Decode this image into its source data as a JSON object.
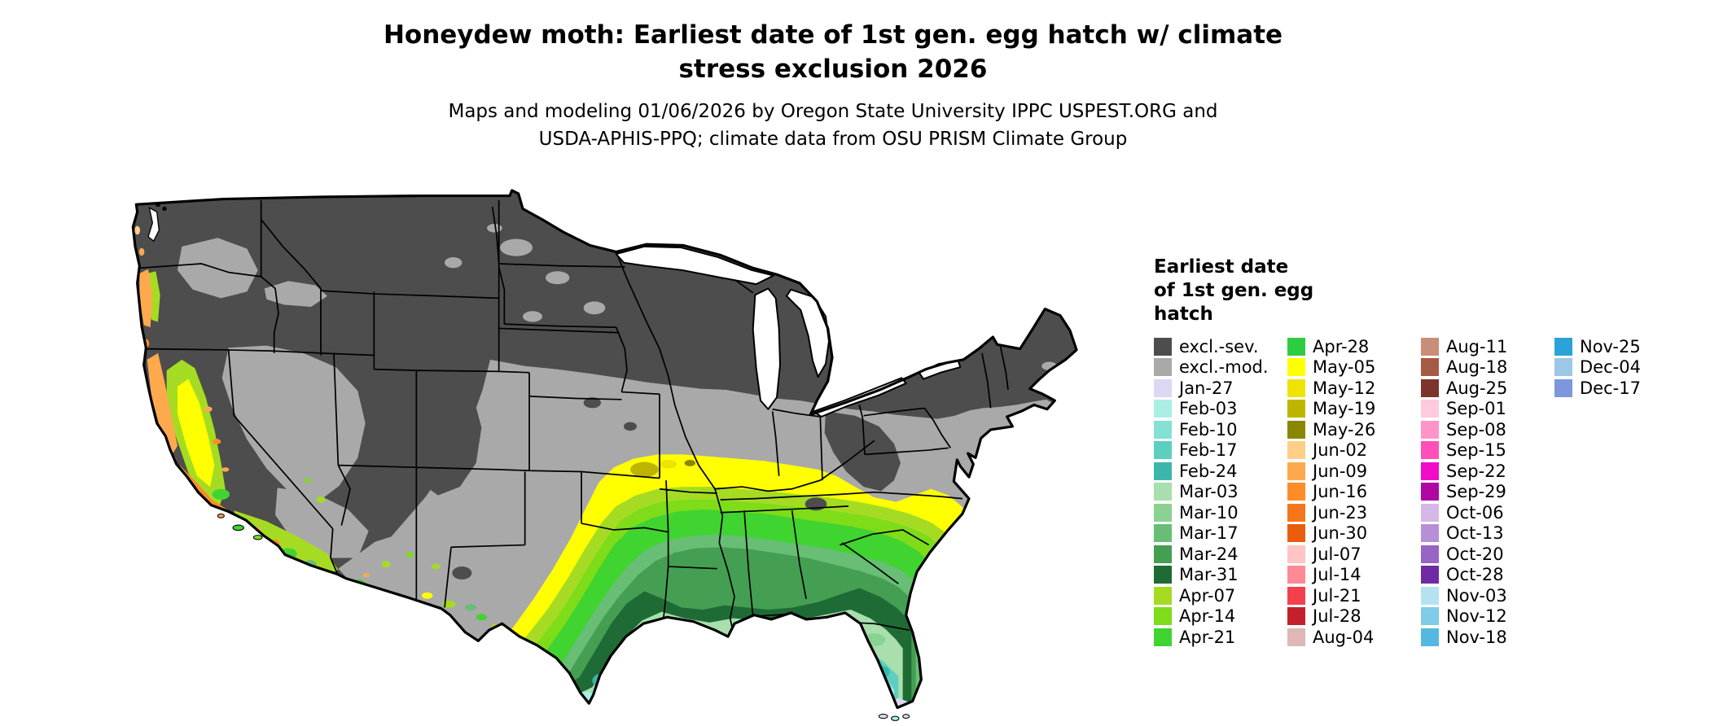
{
  "title": {
    "line1": "Honeydew moth: Earliest date of 1st gen. egg hatch w/ climate",
    "line2": "stress exclusion 2026"
  },
  "subtitle": {
    "line1": "Maps and modeling 01/06/2026 by Oregon State University IPPC USPEST.ORG and",
    "line2": "USDA-APHIS-PPQ; climate data from OSU PRISM Climate Group"
  },
  "map": {
    "kind": "choropleth of continental United States",
    "excluded_color_severe": "#4D4D4D",
    "excluded_color_moderate": "#A9A9A9",
    "outline_color": "#000000",
    "water_color": "#FFFFFF"
  },
  "legend": {
    "title_lines": [
      "Earliest date",
      "of 1st gen. egg",
      "hatch"
    ],
    "columns": [
      [
        {
          "label": "excl.-sev.",
          "color": "#4D4D4D"
        },
        {
          "label": "excl.-mod.",
          "color": "#A9A9A9"
        },
        {
          "label": "Jan-27",
          "color": "#DCD7F2"
        },
        {
          "label": "Feb-03",
          "color": "#ABEFE4"
        },
        {
          "label": "Feb-10",
          "color": "#84E1D4"
        },
        {
          "label": "Feb-17",
          "color": "#5CCFC0"
        },
        {
          "label": "Feb-24",
          "color": "#3BB6AB"
        },
        {
          "label": "Mar-03",
          "color": "#A8DFAC"
        },
        {
          "label": "Mar-10",
          "color": "#8AD292"
        },
        {
          "label": "Mar-17",
          "color": "#68BE74"
        },
        {
          "label": "Mar-24",
          "color": "#459F53"
        },
        {
          "label": "Mar-31",
          "color": "#1F6B35"
        },
        {
          "label": "Apr-07",
          "color": "#A5DC23"
        },
        {
          "label": "Apr-14",
          "color": "#7EDC19"
        },
        {
          "label": "Apr-21",
          "color": "#3FD430"
        }
      ],
      [
        {
          "label": "Apr-28",
          "color": "#2ECC40"
        },
        {
          "label": "May-05",
          "color": "#FFFF00"
        },
        {
          "label": "May-12",
          "color": "#EFE400"
        },
        {
          "label": "May-19",
          "color": "#BDB500"
        },
        {
          "label": "May-26",
          "color": "#8A8600"
        },
        {
          "label": "Jun-02",
          "color": "#FFCE87"
        },
        {
          "label": "Jun-09",
          "color": "#FFA94F"
        },
        {
          "label": "Jun-16",
          "color": "#FF8C26"
        },
        {
          "label": "Jun-23",
          "color": "#F5761A"
        },
        {
          "label": "Jun-30",
          "color": "#E85D0E"
        },
        {
          "label": "Jul-07",
          "color": "#FFC4C4"
        },
        {
          "label": "Jul-14",
          "color": "#FF8A94"
        },
        {
          "label": "Jul-21",
          "color": "#F2414C"
        },
        {
          "label": "Jul-28",
          "color": "#C4202C"
        },
        {
          "label": "Aug-04",
          "color": "#DFB8B4"
        }
      ],
      [
        {
          "label": "Aug-11",
          "color": "#C98E78"
        },
        {
          "label": "Aug-18",
          "color": "#A55B42"
        },
        {
          "label": "Aug-25",
          "color": "#7C352A"
        },
        {
          "label": "Sep-01",
          "color": "#FFC9DE"
        },
        {
          "label": "Sep-08",
          "color": "#FF94CB"
        },
        {
          "label": "Sep-15",
          "color": "#FF4FB8"
        },
        {
          "label": "Sep-22",
          "color": "#F10DC8"
        },
        {
          "label": "Sep-29",
          "color": "#B007A4"
        },
        {
          "label": "Oct-06",
          "color": "#D5B8E8"
        },
        {
          "label": "Oct-13",
          "color": "#B78FD6"
        },
        {
          "label": "Oct-20",
          "color": "#9765C4"
        },
        {
          "label": "Oct-28",
          "color": "#6F2BA3"
        },
        {
          "label": "Nov-03",
          "color": "#B5E2F2"
        },
        {
          "label": "Nov-12",
          "color": "#7FCBE8"
        },
        {
          "label": "Nov-18",
          "color": "#55B8E0"
        }
      ],
      [
        {
          "label": "Nov-25",
          "color": "#2BA3D8"
        },
        {
          "label": "Dec-04",
          "color": "#9CC7E6"
        },
        {
          "label": "Dec-17",
          "color": "#7D96DC"
        }
      ]
    ]
  }
}
